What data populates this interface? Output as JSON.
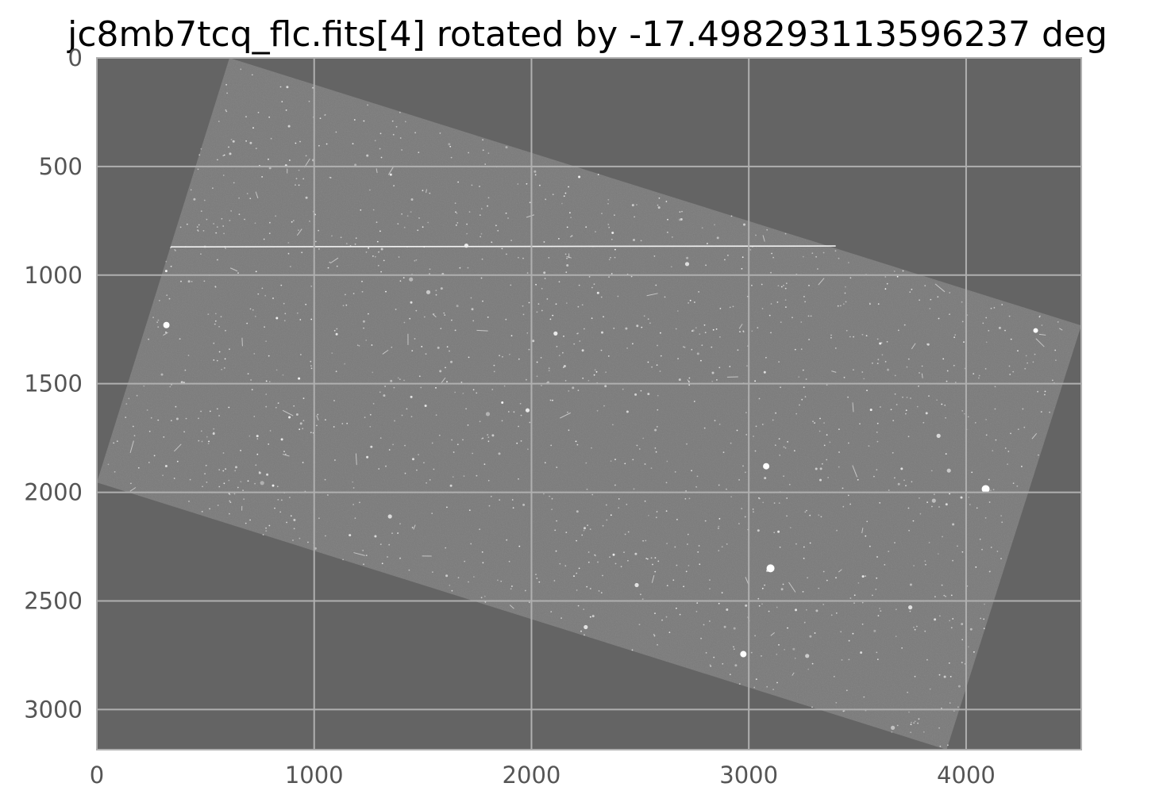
{
  "chart_data": {
    "type": "heatmap",
    "title": "jc8mb7tcq_flc.fits[4] rotated by -17.498293113596237 deg",
    "xlabel": "",
    "ylabel": "",
    "xlim": [
      0,
      4530
    ],
    "ylim": [
      3185,
      0
    ],
    "y_inverted": true,
    "grid": true,
    "x_ticks": [
      0,
      1000,
      2000,
      3000,
      4000
    ],
    "y_ticks": [
      0,
      500,
      1000,
      1500,
      2000,
      2500,
      3000
    ],
    "x_tick_labels": [
      "0",
      "1000",
      "2000",
      "3000",
      "4000"
    ],
    "y_tick_labels": [
      "0",
      "500",
      "1000",
      "1500",
      "2000",
      "2500",
      "3000"
    ],
    "image_footprint": [
      {
        "x": 610,
        "y": 0
      },
      {
        "x": 4530,
        "y": 1232
      },
      {
        "x": 3910,
        "y": 3185
      },
      {
        "x": 0,
        "y": 1955
      }
    ],
    "colormap": "gray",
    "colors": {
      "background": "#646464",
      "image_field": "#7a7a7a",
      "grid": "#b0b0b0",
      "spine": "#b0b0b0"
    }
  }
}
